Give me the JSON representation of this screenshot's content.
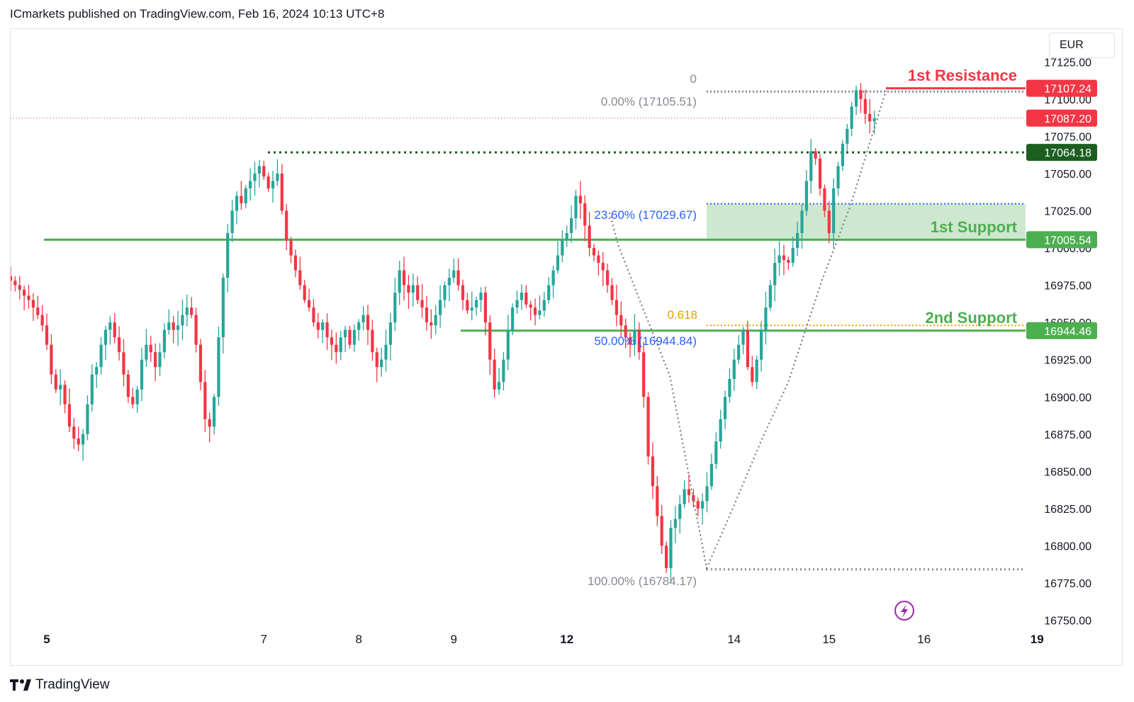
{
  "header": {
    "text": "ICmarkets published on TradingView.com, Feb 16, 2024 10:13 UTC+8"
  },
  "currency": "EUR",
  "footer": {
    "brand": "TradingView"
  },
  "colors": {
    "up": "#26a69a",
    "down": "#f23645",
    "support": "#4caf50",
    "resistance": "#f23645",
    "fib_blue": "#2962ff",
    "fib_gray": "#868993",
    "fib_orange": "#e6a000",
    "dark_green": "#1b5e20",
    "zone_fill": "#c8e6c9",
    "fib_path": "#787b86",
    "icon_purple": "#9c27b0"
  },
  "chart_data": {
    "type": "candlestick",
    "y_axis": {
      "min": 16750,
      "max": 17125,
      "ticks": [
        "17125.00",
        "17100.00",
        "17075.00",
        "17050.00",
        "17025.00",
        "17000.00",
        "16975.00",
        "16950.00",
        "16925.00",
        "16900.00",
        "16875.00",
        "16850.00",
        "16825.00",
        "16800.00",
        "16775.00",
        "16750.00"
      ]
    },
    "x_axis": {
      "labels": [
        {
          "text": "5",
          "index": 8,
          "bold": true
        },
        {
          "text": "7",
          "index": 56,
          "bold": false
        },
        {
          "text": "8",
          "index": 77,
          "bold": false
        },
        {
          "text": "9",
          "index": 98,
          "bold": false
        },
        {
          "text": "12",
          "index": 123,
          "bold": true
        },
        {
          "text": "14",
          "index": 160,
          "bold": false
        },
        {
          "text": "15",
          "index": 181,
          "bold": false
        },
        {
          "text": "16",
          "index": 202,
          "bold": false
        },
        {
          "text": "19",
          "index": 227,
          "bold": true
        }
      ]
    },
    "candles_anchor_close": [
      16978,
      16975,
      16972,
      16968,
      16965,
      16960,
      16955,
      16948,
      16935,
      16915,
      16905,
      16908,
      16895,
      16880,
      16872,
      16868,
      16875,
      16895,
      16915,
      16920,
      16935,
      16945,
      16950,
      16940,
      16930,
      16915,
      16900,
      16895,
      16905,
      16925,
      16935,
      16930,
      16920,
      16930,
      16945,
      16950,
      16945,
      16948,
      16955,
      16960,
      16955,
      16935,
      16910,
      16885,
      16880,
      16900,
      16940,
      16980,
      17010,
      17025,
      17035,
      17030,
      17040,
      17045,
      17050,
      17055,
      17048,
      17040,
      17045,
      17050,
      17025,
      17005,
      16995,
      16985,
      16975,
      16965,
      16960,
      16950,
      16945,
      16950,
      16940,
      16935,
      16930,
      16940,
      16945,
      16935,
      16945,
      16950,
      16955,
      16945,
      16930,
      16920,
      16925,
      16935,
      16950,
      16970,
      16985,
      16975,
      16970,
      16975,
      16965,
      16960,
      16950,
      16948,
      16955,
      16965,
      16975,
      16980,
      16985,
      16975,
      16965,
      16958,
      16960,
      16965,
      16970,
      16950,
      16925,
      16905,
      16910,
      16925,
      16945,
      16960,
      16965,
      16970,
      16962,
      16960,
      16955,
      16958,
      16965,
      16975,
      16985,
      16995,
      17005,
      17010,
      17020,
      17035,
      17030,
      17015,
      17000,
      16995,
      16990,
      16985,
      16975,
      16965,
      16955,
      16948,
      16940,
      16935,
      16945,
      16930,
      16900,
      16860,
      16840,
      16820,
      16800,
      16785,
      16812,
      16818,
      16828,
      16838,
      16834,
      16830,
      16825,
      16830,
      16840,
      16855,
      16870,
      16885,
      16900,
      16912,
      16925,
      16935,
      16945,
      16920,
      16910,
      16925,
      16945,
      16960,
      16975,
      16990,
      16995,
      16992,
      16990,
      17000,
      17010,
      17025,
      17045,
      17065,
      17060,
      17040,
      17025,
      17010,
      17040,
      17055,
      17070,
      17080,
      17095,
      17106,
      17100,
      17090,
      17085,
      17087
    ],
    "resistance": {
      "label": "1st Resistance",
      "value": "17107.24",
      "price": 17107.24
    },
    "support1": {
      "label": "1st Support",
      "value": "17005.54",
      "price": 17005.54
    },
    "support2": {
      "label": "2nd Support",
      "value": "16944.46",
      "price": 16944.46
    },
    "last_price": {
      "value": "17087.20",
      "price": 17087.2
    },
    "dark_level": {
      "value": "17064.18",
      "price": 17064.18
    },
    "fib": {
      "zero_label": "0",
      "levels": [
        {
          "text": "0.00% (17105.51)",
          "price": 17105.51,
          "color": "gray"
        },
        {
          "text": "23.60% (17029.67)",
          "price": 17029.67,
          "color": "blue"
        },
        {
          "text": "50.00% (16944.84)",
          "price": 16944.84,
          "color": "blue"
        },
        {
          "text": "100.00% (16784.17)",
          "price": 16784.17,
          "color": "gray"
        }
      ],
      "ratio_label": "0.618",
      "ratio_price": 16948
    }
  }
}
